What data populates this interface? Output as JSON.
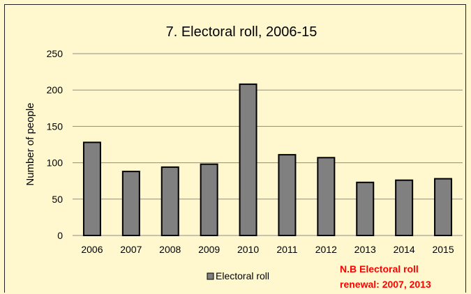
{
  "chart_data": {
    "type": "bar",
    "title": "7. Electoral roll, 2006-15",
    "xlabel": "",
    "ylabel": "Number of people",
    "categories": [
      "2006",
      "2007",
      "2008",
      "2009",
      "2010",
      "2011",
      "2012",
      "2013",
      "2014",
      "2015"
    ],
    "series": [
      {
        "name": "Electoral roll",
        "values": [
          128,
          88,
          94,
          98,
          208,
          111,
          107,
          73,
          76,
          78
        ]
      }
    ],
    "ylim": [
      0,
      250
    ],
    "yticks": [
      "0",
      "50",
      "100",
      "150",
      "200",
      "250"
    ],
    "grid": true,
    "legend_position": "bottom",
    "annotation": {
      "line1": "N.B Electoral roll",
      "line2": "renewal: 2007, 2013"
    },
    "colors": {
      "bar_fill": "#808080",
      "bar_stroke": "#000000",
      "gridline": "#8c8c8c",
      "background": "#fff8cf",
      "annotation": "#ff0000"
    }
  }
}
